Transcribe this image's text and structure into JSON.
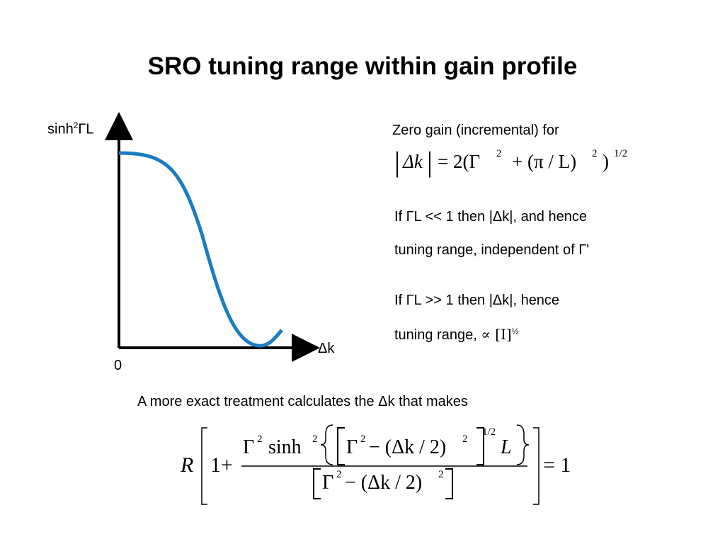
{
  "title": "SRO tuning range within gain profile",
  "graph": {
    "y_axis_label_base": "sinh",
    "y_axis_label_sup": "2",
    "y_axis_label_rest": "ΓL",
    "x_axis_label": "Δk",
    "origin_label": "0",
    "curve_color": "#1a7cc1"
  },
  "notes": {
    "zero_gain": "Zero gain (incremental) for",
    "case1_line1": "If ΓL << 1  then |Δk|, and hence",
    "case1_line2": "tuning range, independent of Γ'",
    "case2_line1": "If ΓL >> 1  then |Δk|, hence",
    "case2_line2_pre": "tuning range,",
    "case2_symbol": "∝ [I]",
    "case2_half": "½",
    "exact": "A more exact treatment calculates the Δk that makes"
  },
  "equation1": {
    "abs_var": "Δk",
    "rhs_lead": "= 2(Γ",
    "exp2": "2",
    "mid": "+ (π / L)",
    "tail": ")",
    "exp_half": "1/2"
  },
  "equation2": {
    "R": "R",
    "one_plus": "1+",
    "num_lead": "Γ",
    "exp2": "2",
    "sinh": "sinh",
    "inner": "Γ",
    "minus_dk": "− (Δk / 2)",
    "exp_half": "1/2",
    "L": "L",
    "den": "− (Δk / 2)",
    "equals": "= 1"
  }
}
